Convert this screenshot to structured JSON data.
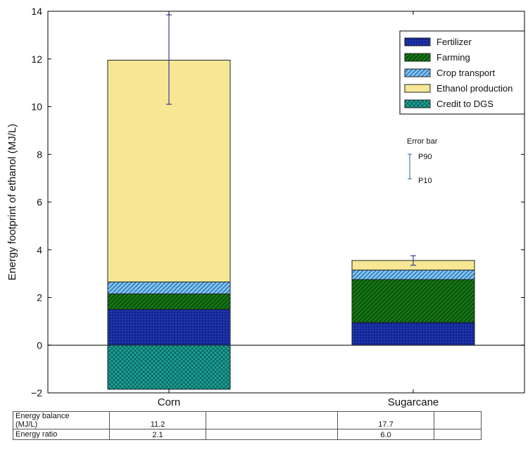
{
  "chart_data": {
    "type": "bar",
    "stacked": true,
    "categories": [
      "Corn",
      "Sugarcane"
    ],
    "ylabel": "Energy footprint of ethanol (MJ/L)",
    "ylim": [
      -2,
      14
    ],
    "yticks": [
      "-2",
      "0",
      "2",
      "4",
      "6",
      "8",
      "10",
      "12",
      "14"
    ],
    "legend_position": "top-right",
    "series": [
      {
        "name": "Fertilizer",
        "values": [
          1.5,
          0.95
        ],
        "color": "#0a1f8f",
        "pattern": "cross-hatch"
      },
      {
        "name": "Farming",
        "values": [
          0.65,
          1.8
        ],
        "color": "#147a14",
        "pattern": "diagonal-hatch"
      },
      {
        "name": "Crop transport",
        "values": [
          0.5,
          0.4
        ],
        "color": "#7cc8ef",
        "pattern": "diagonal-hatch"
      },
      {
        "name": "Ethanol production",
        "values": [
          9.3,
          0.4
        ],
        "color": "#f7e795",
        "pattern": "none"
      },
      {
        "name": "Credit to DGS",
        "values": [
          -1.85,
          0
        ],
        "color": "#1aa39a",
        "pattern": "crosshatch-x"
      }
    ],
    "error_bars": [
      {
        "category": "Corn",
        "low": 10.1,
        "high": 13.85
      },
      {
        "category": "Sugarcane",
        "low": 3.35,
        "high": 3.75
      }
    ],
    "error_bar_legend": {
      "title": "Error bar",
      "top_label": "P90",
      "bottom_label": "P10",
      "color": "#4a7fb5"
    }
  },
  "table": {
    "rows": [
      {
        "label": "Energy balance\n(MJ/L)",
        "values": [
          "11.2",
          "17.7"
        ]
      },
      {
        "label": "Energy ratio",
        "values": [
          "2.1",
          "6.0"
        ]
      }
    ]
  }
}
